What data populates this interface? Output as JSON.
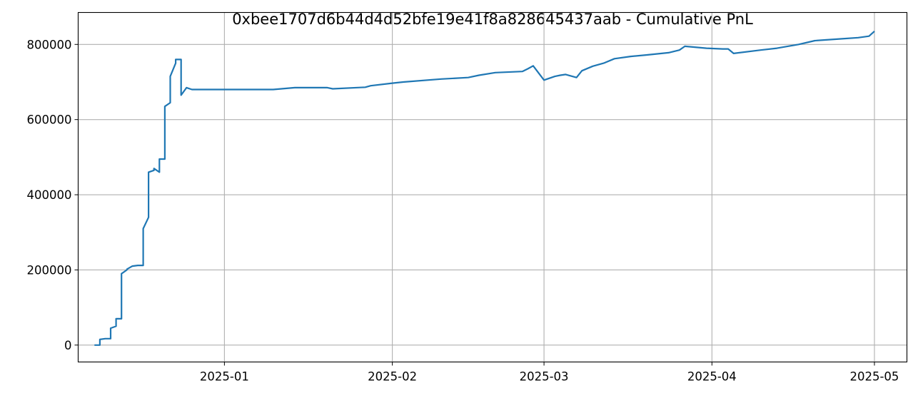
{
  "chart_data": {
    "type": "line",
    "title": "0xbee1707d6b44d4d52bfe19e41f8a828645437aab - Cumulative PnL",
    "xlabel": "",
    "ylabel": "",
    "x_axis_type": "date",
    "xlim": [
      "2024-12-05",
      "2025-05-07"
    ],
    "ylim": [
      -45000,
      885000
    ],
    "x_ticks": [
      "2025-01",
      "2025-02",
      "2025-03",
      "2025-04",
      "2025-05"
    ],
    "x_tick_dates": [
      "2025-01-01",
      "2025-02-01",
      "2025-03-01",
      "2025-04-01",
      "2025-05-01"
    ],
    "y_ticks": [
      0,
      200000,
      400000,
      600000,
      800000
    ],
    "y_tick_labels": [
      "0",
      "200000",
      "400000",
      "600000",
      "800000"
    ],
    "grid": true,
    "legend": "none",
    "series": [
      {
        "color": "#1f77b4",
        "x": [
          "2024-12-08",
          "2024-12-09",
          "2024-12-09",
          "2024-12-10",
          "2024-12-11",
          "2024-12-11",
          "2024-12-12",
          "2024-12-12",
          "2024-12-13",
          "2024-12-13",
          "2024-12-14",
          "2024-12-14",
          "2024-12-15",
          "2024-12-16",
          "2024-12-17",
          "2024-12-17",
          "2024-12-18",
          "2024-12-18",
          "2024-12-19",
          "2024-12-19",
          "2024-12-20",
          "2024-12-20",
          "2024-12-21",
          "2024-12-21",
          "2024-12-22",
          "2024-12-22",
          "2024-12-23",
          "2024-12-23",
          "2024-12-24",
          "2024-12-24",
          "2024-12-25",
          "2024-12-26",
          "2025-01-05",
          "2025-01-10",
          "2025-01-14",
          "2025-01-20",
          "2025-01-21",
          "2025-01-27",
          "2025-01-28",
          "2025-02-01",
          "2025-02-03",
          "2025-02-10",
          "2025-02-15",
          "2025-02-17",
          "2025-02-20",
          "2025-02-25",
          "2025-02-26",
          "2025-02-27",
          "2025-03-01",
          "2025-03-03",
          "2025-03-04",
          "2025-03-05",
          "2025-03-07",
          "2025-03-08",
          "2025-03-10",
          "2025-03-12",
          "2025-03-14",
          "2025-03-17",
          "2025-03-20",
          "2025-03-24",
          "2025-03-26",
          "2025-03-27",
          "2025-03-31",
          "2025-04-03",
          "2025-04-04",
          "2025-04-05",
          "2025-04-10",
          "2025-04-13",
          "2025-04-17",
          "2025-04-20",
          "2025-04-25",
          "2025-04-28",
          "2025-04-30",
          "2025-05-01"
        ],
        "values": [
          0,
          0,
          15000,
          17000,
          17000,
          45000,
          50000,
          70000,
          70000,
          190000,
          200000,
          202000,
          210000,
          212000,
          212000,
          310000,
          340000,
          460000,
          465000,
          470000,
          460000,
          495000,
          495000,
          635000,
          645000,
          715000,
          750000,
          760000,
          760000,
          665000,
          685000,
          680000,
          680000,
          680000,
          685000,
          685000,
          682000,
          686000,
          690000,
          697000,
          700000,
          708000,
          712000,
          718000,
          725000,
          728000,
          735000,
          743000,
          705000,
          715000,
          718000,
          720000,
          712000,
          730000,
          742000,
          750000,
          762000,
          768000,
          772000,
          778000,
          785000,
          795000,
          790000,
          788000,
          788000,
          776000,
          785000,
          790000,
          800000,
          810000,
          815000,
          818000,
          822000,
          835000
        ]
      }
    ]
  }
}
